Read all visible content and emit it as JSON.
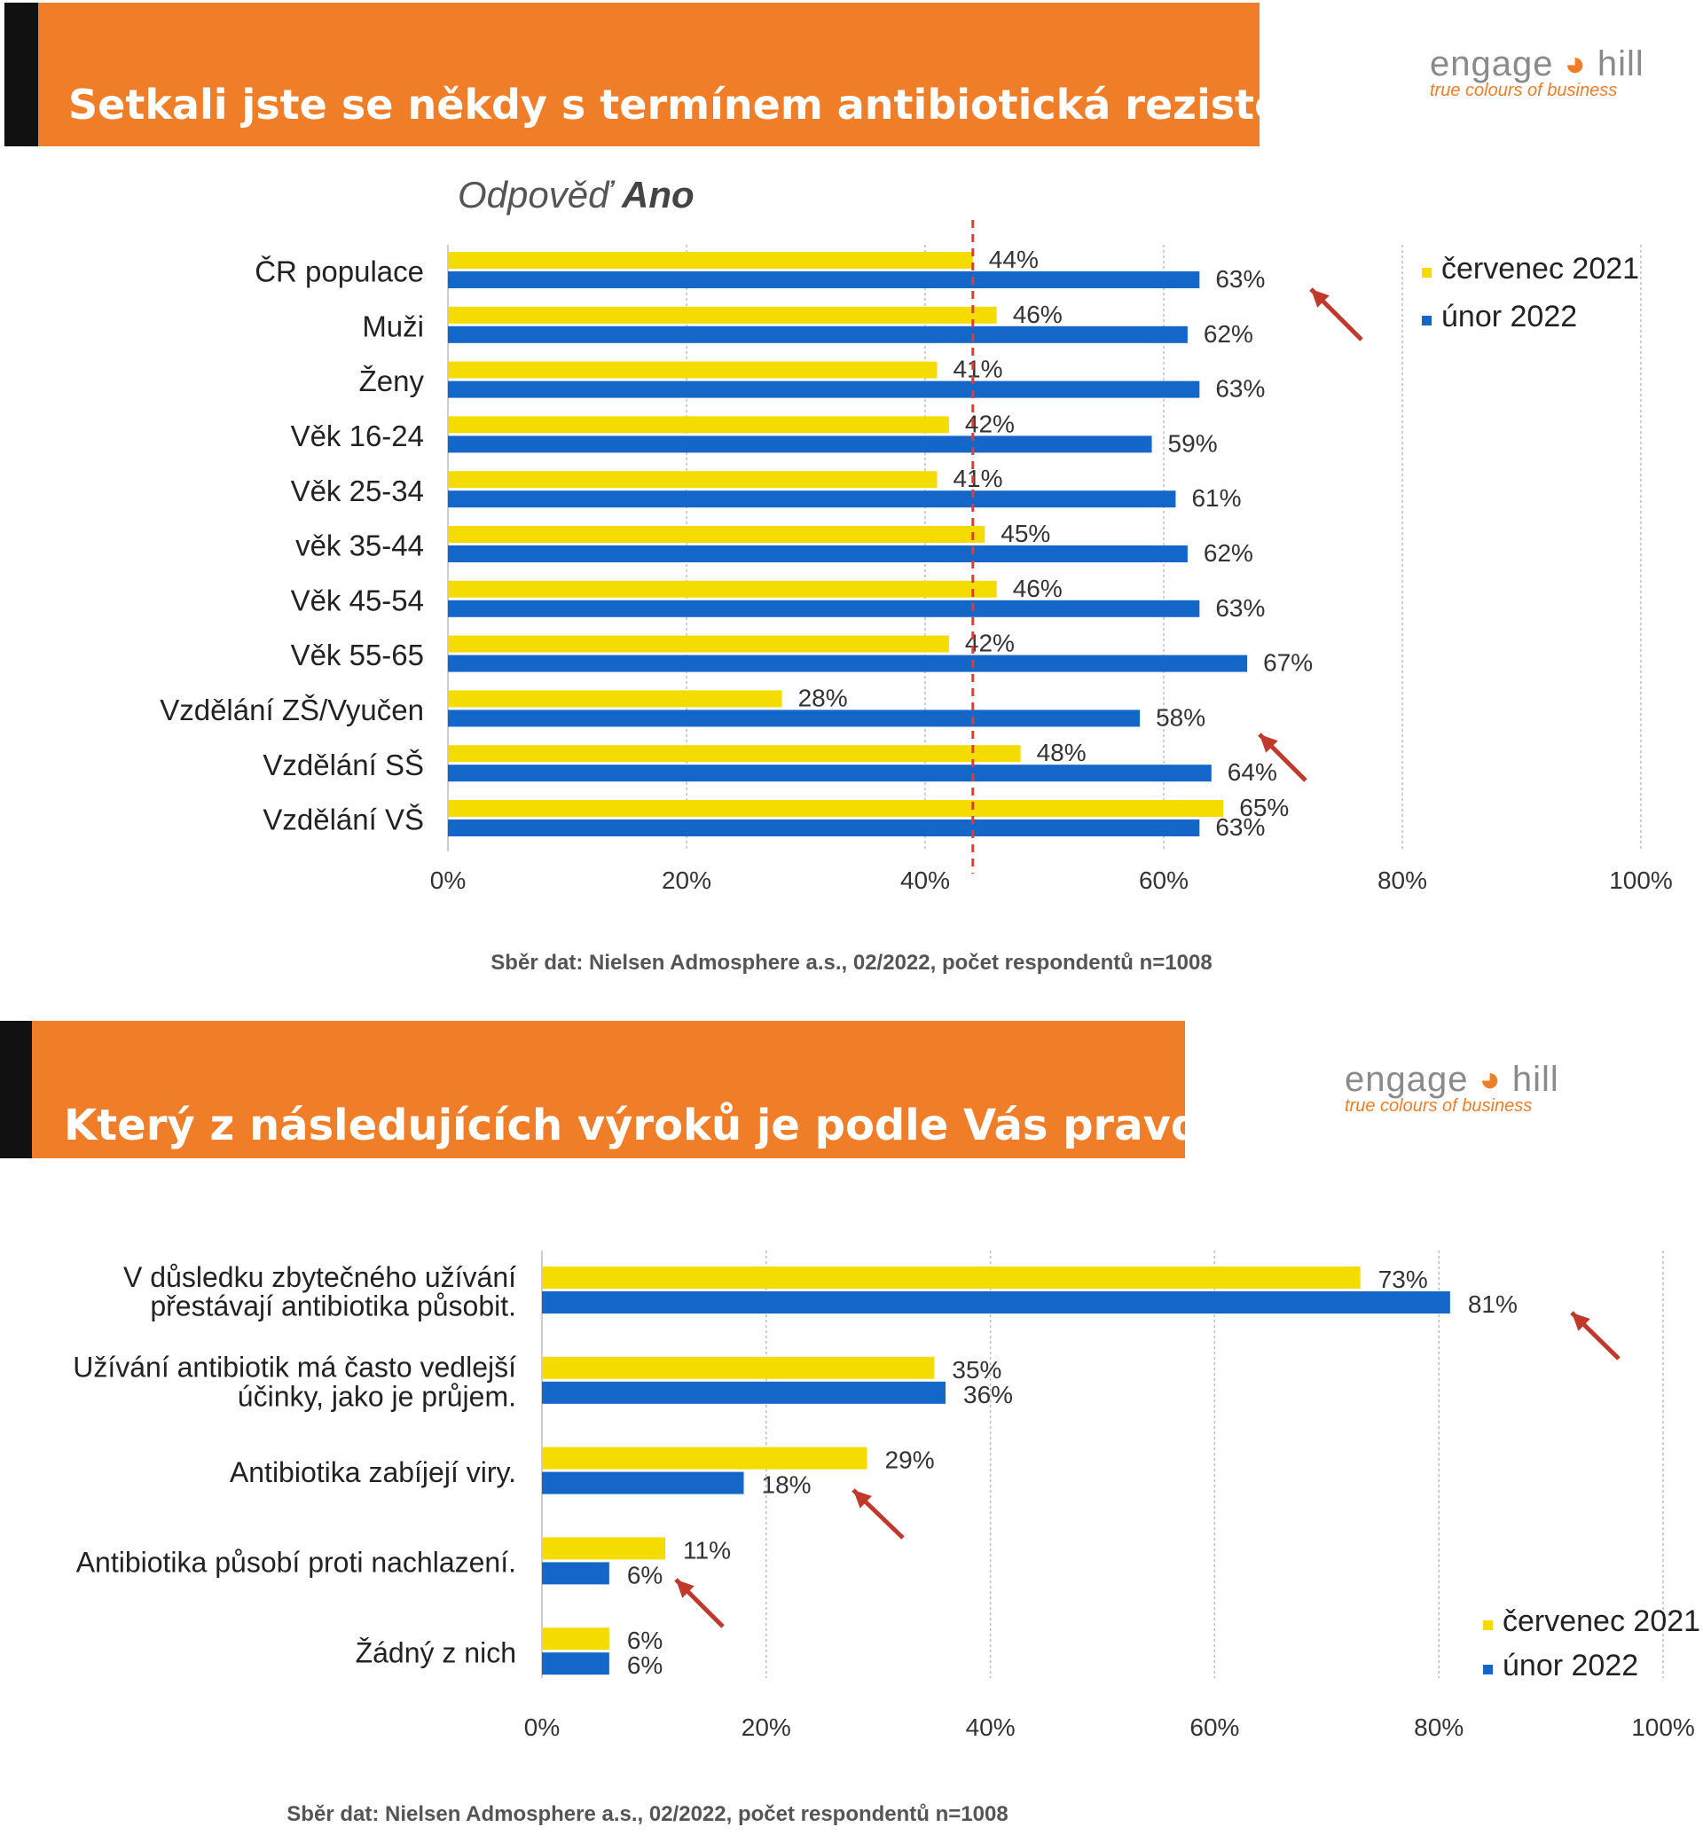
{
  "panels": [
    {
      "title": "Setkali jste se někdy s termínem antibiotická rezistence?",
      "subtitle_prefix": "Odpověď",
      "subtitle_bold": "Ano",
      "source": "Sběr dat: Nielsen Admosphere a.s., 02/2022, počet respondentů n=1008"
    },
    {
      "title": "Který z následujících výroků je podle Vás pravdivý",
      "source": "Sběr dat: Nielsen Admosphere a.s., 02/2022, počet respondentů n=1008"
    }
  ],
  "logo": {
    "word_a": "engage",
    "word_b": "hill",
    "tagline": "true colours of business"
  },
  "colors": {
    "banner": "#f07d27",
    "yellow": "#f5dc00",
    "blue": "#1467c8",
    "reference_line": "#e53935",
    "arrow": "#c0392b"
  },
  "chart_data": [
    {
      "type": "bar",
      "orientation": "horizontal",
      "categories": [
        "ČR populace",
        "Muži",
        "Ženy",
        "Věk 16-24",
        "Věk 25-34",
        "věk 35-44",
        "Věk 45-54",
        "Věk 55-65",
        "Vzdělání ZŠ/Vyučen",
        "Vzdělání SŠ",
        "Vzdělání VŠ"
      ],
      "series": [
        {
          "name": "červenec 2021",
          "color": "#f5dc00",
          "values": [
            44,
            46,
            41,
            42,
            41,
            45,
            46,
            42,
            28,
            48,
            65
          ]
        },
        {
          "name": "únor 2022",
          "color": "#1467c8",
          "values": [
            63,
            62,
            63,
            59,
            61,
            62,
            63,
            67,
            58,
            64,
            63
          ]
        }
      ],
      "xlim": [
        0,
        100
      ],
      "xticks": [
        "0%",
        "20%",
        "40%",
        "60%",
        "80%",
        "100%"
      ],
      "value_suffix": "%",
      "reference_line_value": 44,
      "grid": true,
      "legend_position": "top-right"
    },
    {
      "type": "bar",
      "orientation": "horizontal",
      "categories": [
        [
          "V důsledku zbytečného užívání",
          "přestávají antibiotika působit."
        ],
        [
          "Užívání antibiotik má často vedlejší",
          "účinky, jako je průjem."
        ],
        [
          "Antibiotika zabíjejí viry."
        ],
        [
          "Antibiotika působí proti nachlazení."
        ],
        [
          "Žádný z nich"
        ]
      ],
      "series": [
        {
          "name": "červenec 2021",
          "color": "#f5dc00",
          "values": [
            73,
            35,
            29,
            11,
            6
          ]
        },
        {
          "name": "únor 2022",
          "color": "#1467c8",
          "values": [
            81,
            36,
            18,
            6,
            6
          ]
        }
      ],
      "xlim": [
        0,
        100
      ],
      "xticks": [
        "0%",
        "20%",
        "40%",
        "60%",
        "80%",
        "100%"
      ],
      "value_suffix": "%",
      "grid": true,
      "legend_position": "bottom-right"
    }
  ]
}
